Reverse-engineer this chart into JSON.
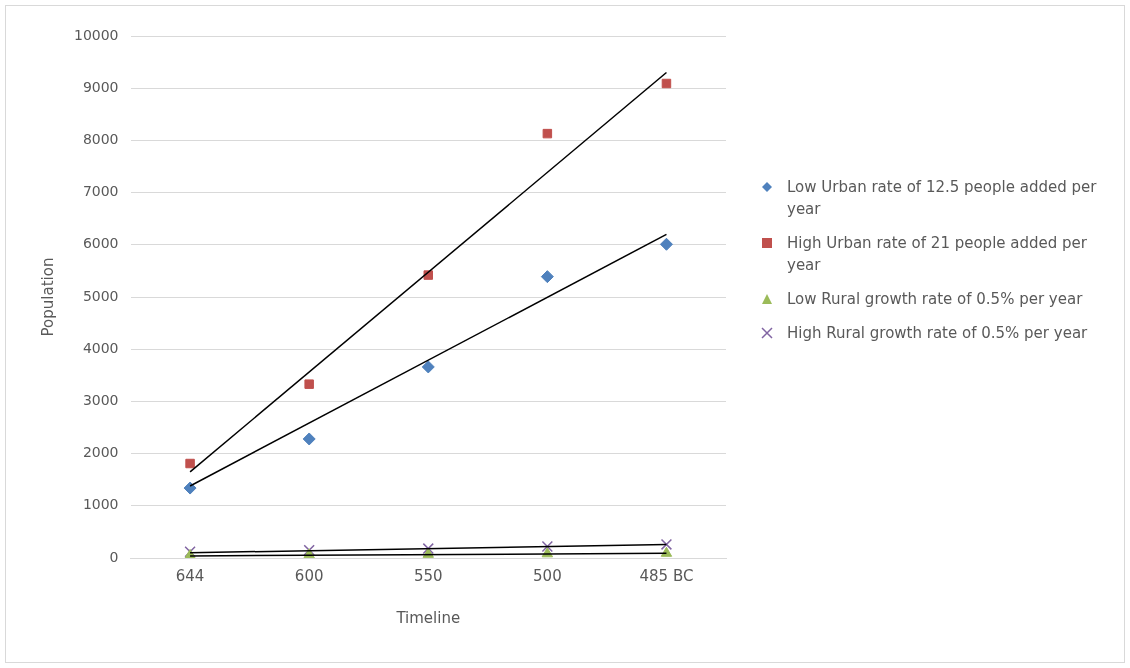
{
  "chart_data": {
    "type": "scatter",
    "xlabel": "Timeline",
    "ylabel": "Population",
    "categories": [
      "644",
      "600",
      "550",
      "500",
      "485 BC"
    ],
    "ylim": [
      0,
      10000
    ],
    "yticks": [
      0,
      1000,
      2000,
      3000,
      4000,
      5000,
      6000,
      7000,
      8000,
      9000,
      10000
    ],
    "grid": "y",
    "legend": "right",
    "series": [
      {
        "name": "Low Urban rate of 12.5 people added per year",
        "color": "#4f81bd",
        "marker": "diamond",
        "values": [
          1340,
          2280,
          3660,
          5390,
          6010
        ]
      },
      {
        "name": "High Urban rate of 21 people added per year",
        "color": "#c0504d",
        "marker": "square",
        "values": [
          1810,
          3330,
          5420,
          8130,
          9090
        ]
      },
      {
        "name": "Low Rural growth rate of 0.5% per year",
        "color": "#9bbb59",
        "marker": "triangle",
        "values": [
          50,
          60,
          70,
          80,
          90
        ]
      },
      {
        "name": "High Rural growth rate of 0.5% per year",
        "color": "#8064a2",
        "marker": "cross",
        "values": [
          120,
          150,
          180,
          220,
          260
        ]
      },
      {
        "type": "line",
        "color": "#000000",
        "marker": "none",
        "x": [
          "644",
          "485 BC"
        ],
        "values": [
          1380,
          6200
        ]
      },
      {
        "type": "line",
        "color": "#000000",
        "marker": "none",
        "x": [
          "644",
          "485 BC"
        ],
        "values": [
          1650,
          9300
        ]
      },
      {
        "type": "line",
        "color": "#000000",
        "marker": "none",
        "x": [
          "644",
          "485 BC"
        ],
        "values": [
          40,
          90
        ]
      },
      {
        "type": "line",
        "color": "#000000",
        "marker": "none",
        "x": [
          "644",
          "485 BC"
        ],
        "values": [
          100,
          260
        ]
      }
    ]
  }
}
